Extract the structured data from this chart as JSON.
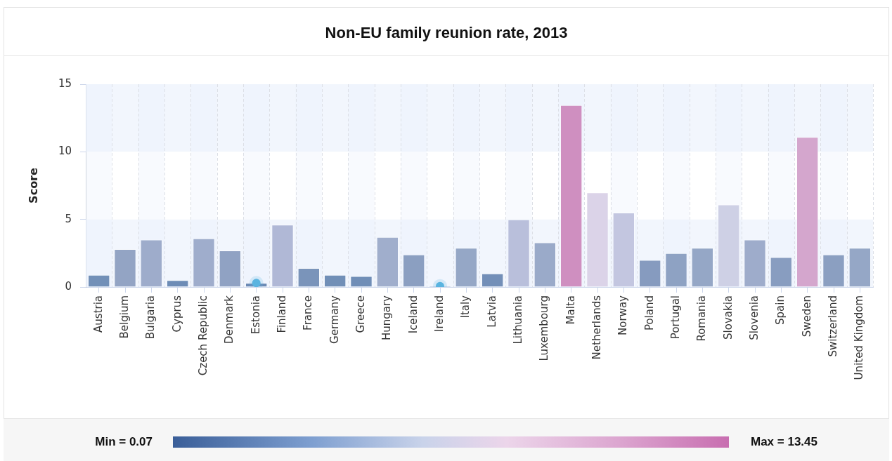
{
  "chart_data": {
    "type": "bar",
    "title": "Non-EU family reunion rate, 2013",
    "ylabel": "Score",
    "categories": [
      "Austria",
      "Belgium",
      "Bulgaria",
      "Cyprus",
      "Czech Republic",
      "Denmark",
      "Estonia",
      "Finland",
      "France",
      "Germany",
      "Greece",
      "Hungary",
      "Iceland",
      "Ireland",
      "Italy",
      "Latvia",
      "Lithuania",
      "Luxembourg",
      "Malta",
      "Netherlands",
      "Norway",
      "Poland",
      "Portugal",
      "Romania",
      "Slovakia",
      "Slovenia",
      "Spain",
      "Sweden",
      "Switzerland",
      "United Kingdom"
    ],
    "series": [
      {
        "values": [
          0.9,
          2.8,
          3.5,
          0.5,
          3.6,
          2.7,
          0.3,
          4.6,
          1.4,
          0.9,
          0.8,
          3.7,
          2.4,
          0.07,
          2.9,
          1.0,
          5.0,
          3.3,
          13.45,
          7.0,
          5.5,
          2.0,
          2.5,
          2.9,
          6.1,
          3.5,
          2.2,
          11.1,
          2.4,
          2.9
        ],
        "colors": [
          "#7290b8",
          "#93a4c4",
          "#9eaccb",
          "#6d8cb6",
          "#9fadcc",
          "#90a2c3",
          "#6b89b4",
          "#b0b8d6",
          "#7a94ba",
          "#718fb7",
          "#708eb7",
          "#a0aecc",
          "#8b9fc1",
          "#6a88b3",
          "#95a7c6",
          "#738fb8",
          "#b9bfdb",
          "#9aaac9",
          "#cf8fc0",
          "#dbd3e8",
          "#c3c6e0",
          "#869bbf",
          "#8ea2c3",
          "#95a7c6",
          "#ced0e5",
          "#9eaccb",
          "#889dc0",
          "#d4a6cd",
          "#8b9fc1",
          "#95a7c6"
        ]
      },
      {
        "type": "scatter",
        "x": [
          "Estonia",
          "Ireland"
        ],
        "values": [
          0.3,
          0.07
        ],
        "color": "#5ab4e0",
        "marker": "circle"
      }
    ],
    "ylim": [
      0,
      15
    ],
    "yticks": [
      0,
      5,
      10,
      15
    ],
    "grid": true,
    "annotations": [
      "Min = 0.07",
      "Max = 13.45"
    ]
  }
}
